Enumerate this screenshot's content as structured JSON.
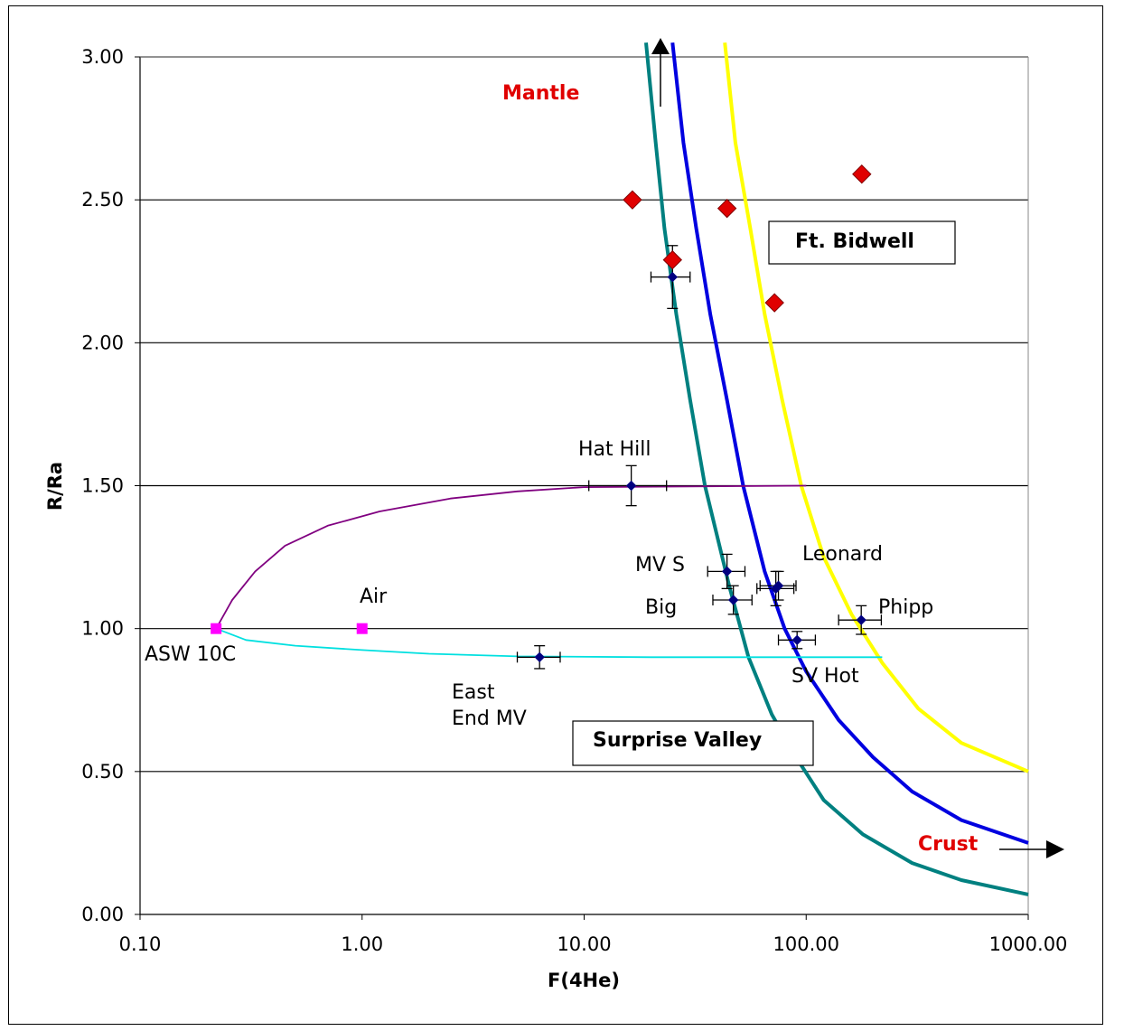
{
  "chart_data": {
    "type": "scatter",
    "xlabel": "F(4He)",
    "ylabel": "R/Ra",
    "xscale": "log",
    "xlim": [
      0.1,
      1000
    ],
    "ylim": [
      0,
      3
    ],
    "grid": "horizontal",
    "xticks": [
      "0.10",
      "1.00",
      "10.00",
      "100.00",
      "1000.00"
    ],
    "yticks": [
      "0.00",
      "0.50",
      "1.00",
      "1.50",
      "2.00",
      "2.50",
      "3.00"
    ],
    "samples": [
      {
        "label": "Hat Hill",
        "x": 16.3,
        "y": 1.5,
        "xerr_lo": 10.5,
        "xerr_hi": 23.5,
        "yerr": 0.07
      },
      {
        "label": "MV S",
        "x": 44,
        "y": 1.2,
        "xerr_lo": 36,
        "xerr_hi": 53,
        "yerr": 0.06
      },
      {
        "label": "Big",
        "x": 47,
        "y": 1.1,
        "xerr_lo": 38,
        "xerr_hi": 57,
        "yerr": 0.05
      },
      {
        "label": "Leonard",
        "x": 73,
        "y": 1.14,
        "xerr_lo": 60,
        "xerr_hi": 88,
        "yerr": 0.06
      },
      {
        "label": "",
        "x": 75,
        "y": 1.15,
        "xerr_lo": 62,
        "xerr_hi": 90,
        "yerr": 0.05
      },
      {
        "label": "Phipp",
        "x": 177,
        "y": 1.03,
        "xerr_lo": 140,
        "xerr_hi": 218,
        "yerr": 0.05
      },
      {
        "label": "SV Hot",
        "x": 91,
        "y": 0.96,
        "xerr_lo": 75,
        "xerr_hi": 110,
        "yerr": 0.03
      },
      {
        "label": "East End MV",
        "x": 6.3,
        "y": 0.9,
        "xerr_lo": 5.0,
        "xerr_hi": 7.8,
        "yerr": 0.04
      },
      {
        "label": "",
        "x": 25,
        "y": 2.23,
        "xerr_lo": 20,
        "xerr_hi": 30,
        "yerr": 0.11
      }
    ],
    "ft_bidwell": [
      {
        "x": 16.5,
        "y": 2.5
      },
      {
        "x": 44,
        "y": 2.47
      },
      {
        "x": 25,
        "y": 2.29
      },
      {
        "x": 72,
        "y": 2.14
      },
      {
        "x": 178,
        "y": 2.59
      }
    ],
    "endmembers": [
      {
        "label": "ASW 10C",
        "x": 0.22,
        "y": 1.0
      },
      {
        "label": "Air",
        "x": 1.0,
        "y": 1.0
      }
    ],
    "curves": [
      {
        "color": "#008080",
        "points": [
          [
            19,
            3.05
          ],
          [
            21,
            2.7
          ],
          [
            23,
            2.4
          ],
          [
            26,
            2.1
          ],
          [
            30,
            1.8
          ],
          [
            35,
            1.5
          ],
          [
            45,
            1.15
          ],
          [
            55,
            0.9
          ],
          [
            70,
            0.7
          ],
          [
            90,
            0.55
          ],
          [
            120,
            0.4
          ],
          [
            180,
            0.28
          ],
          [
            300,
            0.18
          ],
          [
            500,
            0.12
          ],
          [
            1000,
            0.07
          ]
        ]
      },
      {
        "color": "#0000e0",
        "points": [
          [
            25,
            3.05
          ],
          [
            28,
            2.7
          ],
          [
            32,
            2.4
          ],
          [
            37,
            2.1
          ],
          [
            44,
            1.8
          ],
          [
            52,
            1.5
          ],
          [
            65,
            1.2
          ],
          [
            80,
            1.0
          ],
          [
            100,
            0.85
          ],
          [
            140,
            0.68
          ],
          [
            200,
            0.55
          ],
          [
            300,
            0.43
          ],
          [
            500,
            0.33
          ],
          [
            1000,
            0.25
          ]
        ]
      },
      {
        "color": "#ffff00",
        "points": [
          [
            43,
            3.05
          ],
          [
            48,
            2.7
          ],
          [
            56,
            2.4
          ],
          [
            65,
            2.1
          ],
          [
            78,
            1.8
          ],
          [
            95,
            1.5
          ],
          [
            120,
            1.25
          ],
          [
            160,
            1.05
          ],
          [
            220,
            0.88
          ],
          [
            320,
            0.72
          ],
          [
            500,
            0.6
          ],
          [
            1000,
            0.5
          ]
        ]
      },
      {
        "color": "#800080",
        "points": [
          [
            0.22,
            1.0
          ],
          [
            0.26,
            1.1
          ],
          [
            0.33,
            1.2
          ],
          [
            0.45,
            1.29
          ],
          [
            0.7,
            1.36
          ],
          [
            1.2,
            1.41
          ],
          [
            2.5,
            1.455
          ],
          [
            5,
            1.48
          ],
          [
            10,
            1.495
          ],
          [
            100,
            1.5
          ]
        ]
      },
      {
        "color": "#00e0e0",
        "points": [
          [
            0.22,
            1.0
          ],
          [
            0.3,
            0.96
          ],
          [
            0.5,
            0.94
          ],
          [
            1.0,
            0.925
          ],
          [
            2,
            0.912
          ],
          [
            5,
            0.903
          ],
          [
            20,
            0.9
          ],
          [
            100,
            0.9
          ],
          [
            220,
            0.9
          ]
        ]
      }
    ],
    "annotations": {
      "mantle": "Mantle",
      "crust": "Crust",
      "ft_bidwell_box": "Ft. Bidwell",
      "surprise_valley_box": "Surprise Valley",
      "hat_hill": "Hat Hill",
      "mv_s": "MV S",
      "big": "Big",
      "leonard": "Leonard",
      "phipp": "Phipp",
      "sv_hot": "SV Hot",
      "air": "Air",
      "asw": "ASW 10C",
      "east_end_1": "East",
      "east_end_2": "End MV"
    },
    "colors": {
      "ft_bidwell_marker": "#e00000",
      "sample_marker": "#000080",
      "endmember_marker": "#ff00ff",
      "annotation_red": "#e00000"
    }
  }
}
